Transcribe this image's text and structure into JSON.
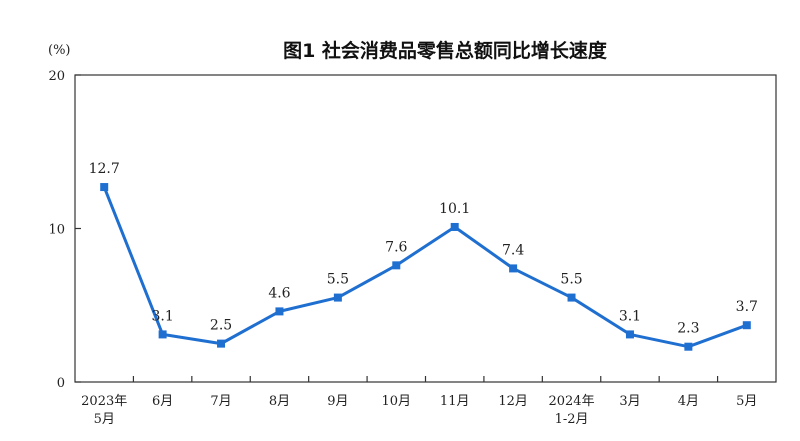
{
  "chart_data": {
    "type": "line",
    "title": "图1  社会消费品零售总额同比增长速度",
    "unit_label": "(%)",
    "categories": [
      [
        "2023年",
        "5月"
      ],
      [
        "6月"
      ],
      [
        "7月"
      ],
      [
        "8月"
      ],
      [
        "9月"
      ],
      [
        "10月"
      ],
      [
        "11月"
      ],
      [
        "12月"
      ],
      [
        "2024年",
        "1-2月"
      ],
      [
        "3月"
      ],
      [
        "4月"
      ],
      [
        "5月"
      ]
    ],
    "series": [
      {
        "values": [
          12.7,
          3.1,
          2.5,
          4.6,
          5.5,
          7.6,
          10.1,
          7.4,
          5.5,
          3.1,
          2.3,
          3.7
        ],
        "labels": [
          "12.7",
          "3.1",
          "2.5",
          "4.6",
          "5.5",
          "7.6",
          "10.1",
          "7.4",
          "5.5",
          "3.1",
          "2.3",
          "3.7"
        ],
        "color": "#1f6fd1"
      }
    ],
    "ylim": [
      0,
      20
    ],
    "yticks": [
      0,
      10,
      20
    ],
    "ytick_labels": [
      "0",
      "10",
      "20"
    ],
    "grid": false,
    "legend": "none"
  }
}
